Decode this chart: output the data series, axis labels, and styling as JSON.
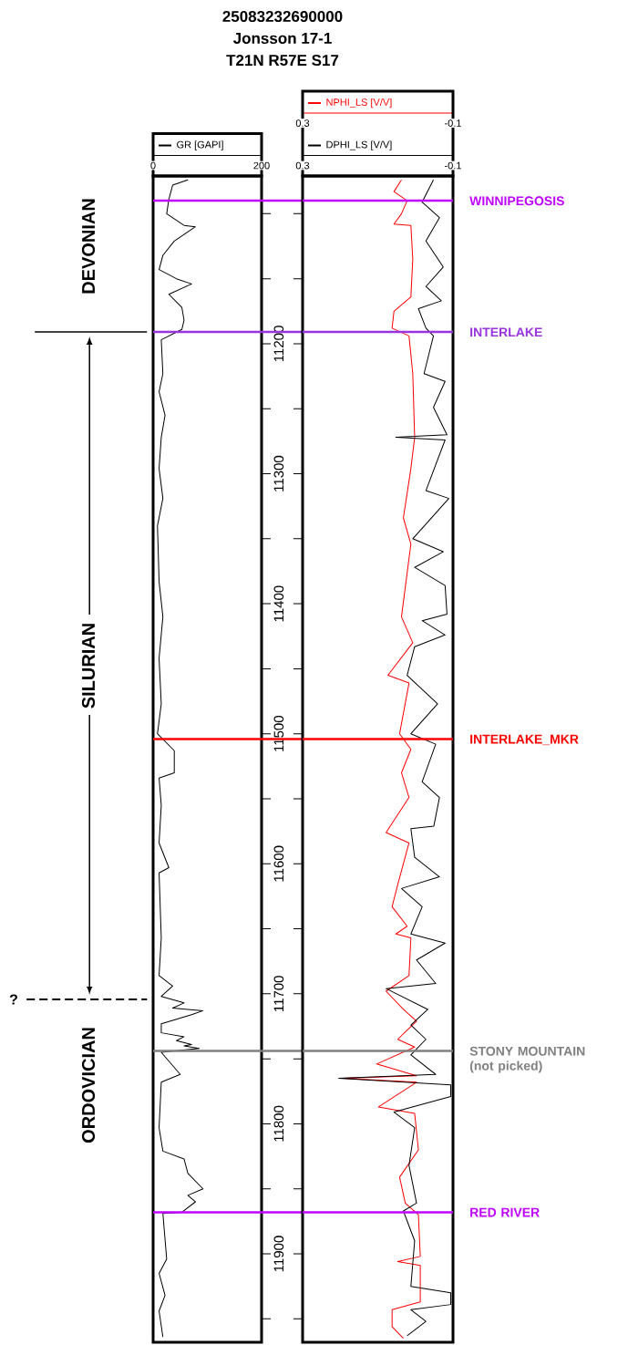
{
  "chart_data": [
    {
      "type": "line",
      "title": "25083232690000",
      "subtitle": "Jonsson 17-1",
      "annotations": [
        "T21N R57E S17",
        "DEVONIAN",
        "SILURIAN",
        "ORDOVICIAN",
        "?"
      ],
      "orientation": "horizontal",
      "series": [
        {
          "name": "GR [GAPI]",
          "color": "#000000",
          "values": [
            64,
            36,
            29,
            25,
            57,
            78,
            39,
            18,
            11,
            43,
            71,
            29,
            53,
            57,
            53,
            15,
            18,
            11,
            22,
            15,
            11,
            18,
            8,
            11,
            18,
            11,
            15,
            8,
            39,
            39,
            11,
            15,
            11,
            29,
            11,
            15,
            11,
            36,
            15,
            57,
            36,
            92,
            71,
            15,
            15,
            57,
            43,
            71,
            57,
            85,
            15,
            50,
            15,
            11,
            18,
            57,
            64,
            92,
            64,
            78,
            53,
            18,
            25,
            11,
            22,
            11,
            18
          ],
          "x": [
            11074,
            11078,
            11089,
            11100,
            11109,
            11110,
            11121,
            11132,
            11143,
            11150,
            11154,
            11162,
            11172,
            11182,
            11189,
            11197,
            11223,
            11237,
            11255,
            11272,
            11296,
            11319,
            11340,
            11383,
            11410,
            11442,
            11477,
            11500,
            11513,
            11530,
            11534,
            11555,
            11584,
            11603,
            11607,
            11657,
            11686,
            11694,
            11702,
            11707,
            11711,
            11713,
            11716,
            11723,
            11730,
            11733,
            11736,
            11739,
            11740,
            11742,
            11745,
            11762,
            11768,
            11803,
            11821,
            11827,
            11838,
            11850,
            11855,
            11860,
            11868,
            11869,
            11904,
            11915,
            11932,
            11944,
            11964
          ]
        }
      ],
      "xlim": [
        0,
        200
      ],
      "xticks": [
        0,
        200
      ],
      "ylim": [
        11968,
        11071
      ],
      "yticks": [
        {
          "value": 11100,
          "label": null
        },
        {
          "value": 11150,
          "label": null
        },
        11200,
        {
          "value": 11250,
          "label": null
        },
        11300,
        {
          "value": 11350,
          "label": null
        },
        11400,
        {
          "value": 11450,
          "label": null
        },
        11500,
        {
          "value": 11550,
          "label": null
        },
        11600,
        {
          "value": 11650,
          "label": null
        },
        11700,
        {
          "value": 11750,
          "label": null
        },
        11800,
        {
          "value": 11850,
          "label": null
        },
        11900,
        {
          "value": 11950,
          "label": null
        }
      ],
      "legend": "top",
      "ref_lines": [
        {
          "axis": "y",
          "value": 11090,
          "color": "#bf00ff"
        },
        {
          "axis": "y",
          "value": 11191,
          "color": "#9933dd"
        },
        {
          "axis": "y",
          "value": 11504,
          "color": "#ff0000"
        },
        {
          "axis": "y",
          "value": 11744,
          "color": "#808080"
        },
        {
          "axis": "y",
          "value": 11868,
          "color": "#bf00ff"
        }
      ]
    },
    {
      "type": "line",
      "orientation": "horizontal",
      "series": [
        {
          "name": "NPHI_LS [V/V]",
          "color": "#ff0000",
          "values": [
            0.037,
            0.057,
            0.022,
            0.037,
            0.057,
            0.012,
            0.007,
            0.012,
            0.057,
            0.062,
            0.017,
            0.007,
            0.002,
            0.012,
            0.032,
            0.012,
            0.037,
            0.007,
            0.073,
            0.017,
            0.042,
            0.012,
            0.037,
            0.017,
            0.078,
            0.017,
            0.047,
            0.062,
            0.022,
            0.052,
            0.012,
            0.017,
            0.078,
            0.032,
            -0.003,
            0.047,
            0.002,
            0.103,
            -0.003,
            0.194,
            -0.003,
            0.098,
            0.002,
            -0.008,
            0.042,
            0.027,
            -0.008,
            -0.013,
            0.047,
            -0.013,
            -0.013,
            0.062,
            0.062,
            0.032
          ],
          "x": [
            11074,
            11083,
            11090,
            11100,
            11108,
            11109,
            11135,
            11164,
            11175,
            11188,
            11194,
            11223,
            11272,
            11296,
            11334,
            11354,
            11410,
            11430,
            11455,
            11461,
            11500,
            11512,
            11530,
            11549,
            11576,
            11584,
            11616,
            11633,
            11648,
            11654,
            11657,
            11686,
            11698,
            11712,
            11721,
            11735,
            11741,
            11754,
            11763,
            11765,
            11768,
            11787,
            11792,
            11820,
            11841,
            11861,
            11870,
            11902,
            11906,
            11909,
            11937,
            11943,
            11956,
            11965
          ]
        },
        {
          "name": "DPHI_LS [V/V]",
          "color": "#000000",
          "values": [
            -0.048,
            -0.018,
            -0.064,
            -0.028,
            -0.074,
            -0.028,
            -0.069,
            -0.008,
            -0.028,
            -0.048,
            -0.023,
            -0.079,
            -0.048,
            -0.084,
            0.052,
            -0.079,
            -0.028,
            -0.089,
            0.007,
            -0.074,
            0.002,
            -0.079,
            -0.084,
            -0.018,
            -0.079,
            0.002,
            0.022,
            -0.059,
            0.012,
            -0.054,
            -0.018,
            -0.064,
            -0.049,
            0.012,
            0.002,
            -0.064,
            0.037,
            -0.018,
            0.012,
            -0.079,
            -0.003,
            -0.054,
            0.078,
            -0.033,
            0.012,
            -0.028,
            0.012,
            -0.054,
            0.204,
            -0.094,
            -0.094,
            0.057,
            0.002,
            0.017,
            -0.003,
            0.032,
            0.002,
            0.012,
            -0.094,
            -0.094,
            0.012,
            -0.028,
            0.022
          ],
          "x": [
            11074,
            11091,
            11103,
            11121,
            11141,
            11156,
            11167,
            11173,
            11188,
            11194,
            11223,
            11229,
            11249,
            11270,
            11272,
            11274,
            11313,
            11319,
            11350,
            11360,
            11372,
            11386,
            11408,
            11413,
            11424,
            11433,
            11455,
            11477,
            11500,
            11508,
            11537,
            11549,
            11571,
            11573,
            11595,
            11610,
            11619,
            11633,
            11654,
            11661,
            11674,
            11692,
            11696,
            11712,
            11724,
            11735,
            11747,
            11762,
            11765,
            11770,
            11779,
            11791,
            11803,
            11832,
            11861,
            11867,
            11890,
            11925,
            11930,
            11939,
            11943,
            11952,
            11963
          ]
        }
      ],
      "xlim": [
        0.3,
        -0.1
      ],
      "xticks": [
        0.3,
        -0.1
      ],
      "x2lim": [
        0.3,
        -0.1
      ],
      "x2ticks": [
        0.3,
        -0.1
      ],
      "ylim": [
        11968,
        11071
      ],
      "yticks": [
        {
          "value": 11100,
          "label": null
        },
        {
          "value": 11150,
          "label": null
        },
        11200,
        {
          "value": 11250,
          "label": null
        },
        11300,
        {
          "value": 11350,
          "label": null
        },
        11400,
        {
          "value": 11450,
          "label": null
        },
        11500,
        {
          "value": 11550,
          "label": null
        },
        11600,
        {
          "value": 11650,
          "label": null
        },
        11700,
        {
          "value": 11750,
          "label": null
        },
        11800,
        {
          "value": 11850,
          "label": null
        },
        11900,
        {
          "value": 11950,
          "label": null
        }
      ],
      "tick_labels": "x",
      "legend": "top",
      "ref_lines": [
        {
          "axis": "y",
          "value": 11090,
          "color": "#bf00ff",
          "label": "WINNIPEGOSIS"
        },
        {
          "axis": "y",
          "value": 11191,
          "color": "#9933dd",
          "label": "INTERLAKE"
        },
        {
          "axis": "y",
          "value": 11504,
          "color": "#ff0000",
          "label": "INTERLAKE_MKR"
        },
        {
          "axis": "y",
          "value": 11744,
          "color": "#808080",
          "label": "STONY MOUNTAIN (not picked)"
        },
        {
          "axis": "y",
          "value": 11868,
          "color": "#bf00ff",
          "label": "RED RIVER"
        }
      ]
    }
  ]
}
